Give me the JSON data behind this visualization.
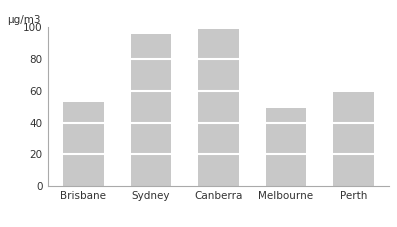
{
  "categories": [
    "Brisbane",
    "Sydney",
    "Canberra",
    "Melbourne",
    "Perth"
  ],
  "values": [
    53,
    96,
    99,
    49,
    59
  ],
  "bar_color": "#c8c8c8",
  "bar_edgecolor": "#c8c8c8",
  "ylabel": "μg/m3",
  "ylim": [
    0,
    100
  ],
  "yticks": [
    0,
    20,
    40,
    60,
    80,
    100
  ],
  "white_line_color": "#ffffff",
  "white_line_linewidth": 1.5,
  "background_color": "#ffffff",
  "spine_color": "#aaaaaa",
  "label_fontsize": 7.5,
  "ylabel_fontsize": 7.5,
  "bar_width": 0.6,
  "white_lines": [
    20,
    40,
    60,
    80
  ]
}
